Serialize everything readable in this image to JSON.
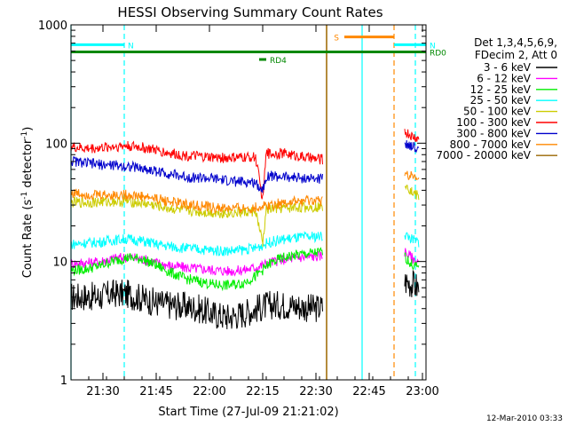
{
  "chart_data": {
    "type": "line",
    "title": "HESSI Observing Summary Count Rates",
    "xlabel": "Start Time (27-Jul-09 21:21:02)",
    "ylabel_main": "Count Rate (s",
    "ylabel_sup1": "-1",
    "ylabel_mid": " detector",
    "ylabel_sup2": "-1",
    "ylabel_end": ")",
    "footer": "12-Mar-2010 03:33",
    "yscale": "log",
    "ylim": [
      1,
      1000
    ],
    "xlim": [
      "21:21",
      "23:01"
    ],
    "x_ticks": [
      "21:30",
      "21:45",
      "22:00",
      "22:15",
      "22:30",
      "22:45",
      "23:00"
    ],
    "y_ticks": [
      "1",
      "10",
      "100",
      "1000"
    ],
    "legend": {
      "header": [
        "Det 1,3,4,5,6,9,",
        "FDecim 2, Att 0"
      ],
      "placement": "right"
    },
    "gaps": [
      [
        "22:33",
        "22:55"
      ]
    ],
    "series": [
      {
        "name": "3 - 6 keV",
        "color": "#000000",
        "points": [
          [
            "21:21",
            5.0
          ],
          [
            "21:25",
            5.1
          ],
          [
            "21:29",
            5.0
          ],
          [
            "21:33",
            5.4
          ],
          [
            "21:37",
            5.3
          ],
          [
            "21:41",
            4.9
          ],
          [
            "21:45",
            4.5
          ],
          [
            "21:49",
            4.3
          ],
          [
            "21:53",
            4.2
          ],
          [
            "21:57",
            4.0
          ],
          [
            "22:01",
            3.6
          ],
          [
            "22:05",
            3.4
          ],
          [
            "22:09",
            3.6
          ],
          [
            "22:13",
            4.0
          ],
          [
            "22:17",
            4.3
          ],
          [
            "22:21",
            4.3
          ],
          [
            "22:25",
            4.2
          ],
          [
            "22:29",
            4.0
          ],
          [
            "22:32",
            4.1
          ],
          [
            "22:55",
            6.8
          ],
          [
            "22:57",
            6.5
          ],
          [
            "22:59",
            6.0
          ]
        ]
      },
      {
        "name": "6 - 12 keV",
        "color": "#ff00ff",
        "points": [
          [
            "21:21",
            9.6
          ],
          [
            "21:25",
            9.7
          ],
          [
            "21:29",
            10.0
          ],
          [
            "21:33",
            10.6
          ],
          [
            "21:37",
            10.9
          ],
          [
            "21:41",
            10.5
          ],
          [
            "21:45",
            9.8
          ],
          [
            "21:49",
            9.2
          ],
          [
            "21:53",
            8.9
          ],
          [
            "21:57",
            8.7
          ],
          [
            "22:01",
            8.5
          ],
          [
            "22:05",
            8.3
          ],
          [
            "22:09",
            8.4
          ],
          [
            "22:13",
            8.9
          ],
          [
            "22:17",
            9.8
          ],
          [
            "22:21",
            10.4
          ],
          [
            "22:25",
            10.8
          ],
          [
            "22:29",
            11.0
          ],
          [
            "22:32",
            11.2
          ],
          [
            "22:55",
            12.2
          ],
          [
            "22:57",
            10.8
          ],
          [
            "22:59",
            9.8
          ]
        ]
      },
      {
        "name": "12 - 25 keV",
        "color": "#00ee00",
        "points": [
          [
            "21:21",
            8.4
          ],
          [
            "21:25",
            8.6
          ],
          [
            "21:29",
            9.2
          ],
          [
            "21:33",
            10.1
          ],
          [
            "21:37",
            10.8
          ],
          [
            "21:41",
            10.5
          ],
          [
            "21:45",
            9.3
          ],
          [
            "21:49",
            8.1
          ],
          [
            "21:53",
            7.2
          ],
          [
            "21:57",
            6.8
          ],
          [
            "22:01",
            6.4
          ],
          [
            "22:05",
            6.3
          ],
          [
            "22:09",
            6.5
          ],
          [
            "22:13",
            7.5
          ],
          [
            "22:17",
            9.6
          ],
          [
            "22:21",
            10.8
          ],
          [
            "22:25",
            11.4
          ],
          [
            "22:29",
            11.8
          ],
          [
            "22:32",
            12.0
          ],
          [
            "22:55",
            11.0
          ],
          [
            "22:57",
            9.5
          ],
          [
            "22:59",
            8.7
          ]
        ]
      },
      {
        "name": "25 - 50 keV",
        "color": "#00ffff",
        "points": [
          [
            "21:21",
            14.0
          ],
          [
            "21:25",
            14.3
          ],
          [
            "21:29",
            14.6
          ],
          [
            "21:33",
            15.2
          ],
          [
            "21:37",
            15.5
          ],
          [
            "21:41",
            14.9
          ],
          [
            "21:45",
            14.0
          ],
          [
            "21:49",
            13.4
          ],
          [
            "21:53",
            13.0
          ],
          [
            "21:57",
            12.7
          ],
          [
            "22:01",
            12.4
          ],
          [
            "22:05",
            12.3
          ],
          [
            "22:09",
            12.5
          ],
          [
            "22:13",
            13.0
          ],
          [
            "22:17",
            14.6
          ],
          [
            "22:21",
            15.4
          ],
          [
            "22:25",
            15.9
          ],
          [
            "22:29",
            16.2
          ],
          [
            "22:32",
            16.4
          ],
          [
            "22:55",
            17.0
          ],
          [
            "22:57",
            15.5
          ],
          [
            "22:59",
            14.6
          ]
        ]
      },
      {
        "name": "50 - 100 keV",
        "color": "#cccc00",
        "points": [
          [
            "21:21",
            31.5
          ],
          [
            "21:25",
            31.5
          ],
          [
            "21:29",
            31.8
          ],
          [
            "21:33",
            32.2
          ],
          [
            "21:37",
            32.2
          ],
          [
            "21:41",
            31.2
          ],
          [
            "21:45",
            29.6
          ],
          [
            "21:49",
            28.0
          ],
          [
            "21:53",
            27.0
          ],
          [
            "21:57",
            26.3
          ],
          [
            "22:01",
            25.8
          ],
          [
            "22:05",
            25.6
          ],
          [
            "22:09",
            25.9
          ],
          [
            "22:13",
            26.6
          ],
          [
            "22:15",
            14.0
          ],
          [
            "22:16",
            27.5
          ],
          [
            "22:21",
            28.2
          ],
          [
            "22:25",
            28.6
          ],
          [
            "22:29",
            28.9
          ],
          [
            "22:32",
            29.1
          ],
          [
            "22:55",
            47.0
          ],
          [
            "22:57",
            39.0
          ],
          [
            "22:59",
            35.0
          ]
        ]
      },
      {
        "name": "100 - 300 keV",
        "color": "#ff0000",
        "points": [
          [
            "21:21",
            93
          ],
          [
            "21:25",
            90
          ],
          [
            "21:29",
            91
          ],
          [
            "21:33",
            94
          ],
          [
            "21:37",
            95
          ],
          [
            "21:41",
            92
          ],
          [
            "21:45",
            87
          ],
          [
            "21:49",
            82
          ],
          [
            "21:53",
            79
          ],
          [
            "21:57",
            77
          ],
          [
            "22:01",
            75.5
          ],
          [
            "22:05",
            75
          ],
          [
            "22:09",
            75.5
          ],
          [
            "22:13",
            76.5
          ],
          [
            "22:15",
            33
          ],
          [
            "22:16",
            82
          ],
          [
            "22:21",
            82
          ],
          [
            "22:25",
            78
          ],
          [
            "22:29",
            74
          ],
          [
            "22:32",
            73
          ],
          [
            "22:55",
            125
          ],
          [
            "22:57",
            115
          ],
          [
            "22:59",
            108
          ]
        ]
      },
      {
        "name": "300 - 800 keV",
        "color": "#0000cc",
        "points": [
          [
            "21:21",
            71
          ],
          [
            "21:25",
            68
          ],
          [
            "21:29",
            66
          ],
          [
            "21:33",
            65
          ],
          [
            "21:37",
            64
          ],
          [
            "21:41",
            61
          ],
          [
            "21:45",
            58
          ],
          [
            "21:49",
            55
          ],
          [
            "21:53",
            52
          ],
          [
            "21:57",
            51
          ],
          [
            "22:01",
            50
          ],
          [
            "22:05",
            48
          ],
          [
            "22:09",
            47
          ],
          [
            "22:13",
            46.5
          ],
          [
            "22:15",
            40
          ],
          [
            "22:16",
            53
          ],
          [
            "22:21",
            52
          ],
          [
            "22:25",
            51
          ],
          [
            "22:29",
            50
          ],
          [
            "22:32",
            50
          ],
          [
            "22:55",
            102
          ],
          [
            "22:57",
            95
          ],
          [
            "22:59",
            88
          ]
        ]
      },
      {
        "name": "800 - 7000 keV",
        "color": "#ff8800",
        "points": [
          [
            "21:21",
            38
          ],
          [
            "21:25",
            37
          ],
          [
            "21:29",
            36.5
          ],
          [
            "21:33",
            36.5
          ],
          [
            "21:37",
            36.5
          ],
          [
            "21:41",
            35.5
          ],
          [
            "21:45",
            34
          ],
          [
            "21:49",
            32
          ],
          [
            "21:53",
            30.5
          ],
          [
            "21:57",
            29.5
          ],
          [
            "22:01",
            28.5
          ],
          [
            "22:05",
            28
          ],
          [
            "22:09",
            28
          ],
          [
            "22:13",
            28.5
          ],
          [
            "22:15",
            29.5
          ],
          [
            "22:21",
            31.5
          ],
          [
            "22:25",
            32
          ],
          [
            "22:29",
            32.5
          ],
          [
            "22:32",
            32.5
          ],
          [
            "22:55",
            57
          ],
          [
            "22:57",
            52
          ],
          [
            "22:59",
            47
          ]
        ]
      },
      {
        "name": "7000 - 20000 keV",
        "color": "#996600",
        "points": [
          [
            "22:33",
            1.0
          ],
          [
            "22:33",
            1000
          ]
        ]
      }
    ],
    "spacecraft_flags": [
      {
        "label": "N",
        "color": "#00ffff",
        "start": "21:21",
        "end": "21:36",
        "level": 680
      },
      {
        "label": "N",
        "color": "#00ffff",
        "start": "22:52",
        "end": "23:01",
        "level": 680
      },
      {
        "label": "S",
        "color": "#ff8800",
        "start": "22:38",
        "end": "22:52",
        "level": 790
      },
      {
        "label": "RD0",
        "color": "#008800",
        "start": "21:21",
        "end": "23:01",
        "level": 590
      },
      {
        "label": "RD4",
        "color": "#008800",
        "start": "22:14",
        "end": "22:16",
        "level": 510
      }
    ],
    "vertical_markers": [
      {
        "time": "21:21",
        "color": "#00ffff",
        "style": "solid"
      },
      {
        "time": "21:36",
        "color": "#00ffff",
        "style": "dashed"
      },
      {
        "time": "22:33",
        "color": "#cc8800",
        "style": "solid"
      },
      {
        "time": "22:43",
        "color": "#00ffff",
        "style": "solid"
      },
      {
        "time": "22:52",
        "color": "#ff8800",
        "style": "dashed"
      },
      {
        "time": "22:58",
        "color": "#00ffff",
        "style": "dashed"
      }
    ]
  }
}
